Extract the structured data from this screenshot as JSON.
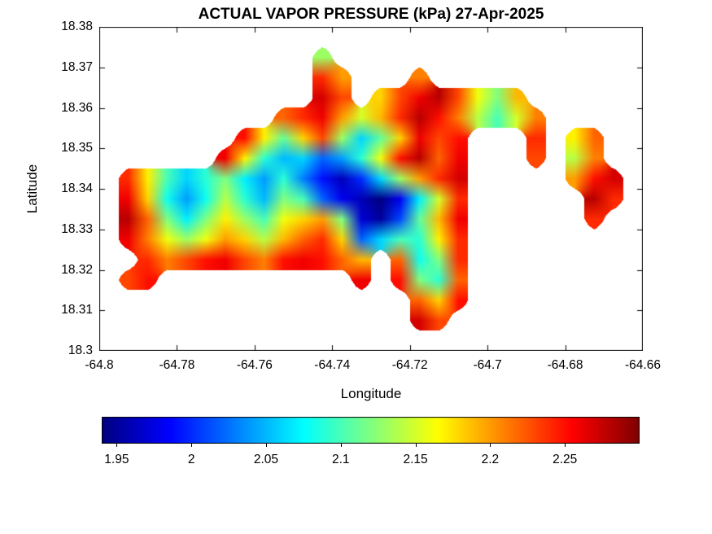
{
  "figure": {
    "background": "#ffffff",
    "axis_color": "#000000"
  },
  "chart_data": {
    "type": "heatmap",
    "title": "ACTUAL VAPOR PRESSURE (kPa) 27-Apr-2025",
    "xlabel": "Longitude",
    "ylabel": "Latitude",
    "units": "kPa",
    "xlim": [
      -64.8,
      -64.66
    ],
    "ylim": [
      18.3,
      18.38
    ],
    "xticks": [
      -64.8,
      -64.78,
      -64.76,
      -64.74,
      -64.72,
      -64.7,
      -64.68,
      -64.66
    ],
    "xtick_labels": [
      "-64.8",
      "-64.78",
      "-64.76",
      "-64.74",
      "-64.72",
      "-64.7",
      "-64.68",
      "-64.66"
    ],
    "yticks": [
      18.38,
      18.37,
      18.36,
      18.35,
      18.34,
      18.33,
      18.32,
      18.31,
      18.3
    ],
    "ytick_labels": [
      "18.38",
      "18.37",
      "18.36",
      "18.35",
      "18.34",
      "18.33",
      "18.32",
      "18.31",
      "18.3"
    ],
    "colormap": "jet",
    "grid_lines": false,
    "colorbar": {
      "orientation": "horizontal",
      "location": "south",
      "vmin": 1.94,
      "vmax": 2.3,
      "ticks": [
        1.95,
        2,
        2.05,
        2.1,
        2.15,
        2.2,
        2.25
      ],
      "tick_labels": [
        "1.95",
        "2",
        "2.05",
        "2.1",
        "2.15",
        "2.2",
        "2.25"
      ]
    },
    "grid": {
      "note": "estimated vapor-pressure field (kPa); null = sea / no data",
      "lon_start": -64.8,
      "lon_step": 0.005,
      "lat_start": 18.38,
      "lat_step": -0.005,
      "rows": 16,
      "cols": 28,
      "values": [
        [
          null,
          null,
          null,
          null,
          null,
          null,
          null,
          null,
          null,
          null,
          null,
          null,
          null,
          null,
          null,
          null,
          null,
          null,
          null,
          null,
          null,
          null,
          null,
          null,
          null,
          null,
          null,
          null
        ],
        [
          null,
          null,
          null,
          null,
          null,
          null,
          null,
          null,
          null,
          null,
          null,
          2.13,
          null,
          null,
          null,
          null,
          null,
          null,
          null,
          null,
          null,
          null,
          null,
          null,
          null,
          null,
          null,
          null
        ],
        [
          null,
          null,
          null,
          null,
          null,
          null,
          null,
          null,
          null,
          null,
          null,
          2.24,
          2.2,
          null,
          null,
          null,
          2.21,
          null,
          null,
          null,
          null,
          null,
          null,
          null,
          null,
          null,
          null,
          null
        ],
        [
          null,
          null,
          null,
          null,
          null,
          null,
          null,
          null,
          null,
          null,
          null,
          2.27,
          2.23,
          null,
          2.18,
          2.23,
          2.26,
          2.28,
          2.23,
          2.16,
          2.12,
          2.19,
          null,
          null,
          null,
          null,
          null,
          null
        ],
        [
          null,
          null,
          null,
          null,
          null,
          null,
          null,
          null,
          null,
          2.22,
          2.24,
          2.26,
          2.2,
          2.15,
          2.19,
          2.24,
          2.28,
          2.25,
          2.21,
          2.14,
          2.1,
          2.15,
          2.21,
          null,
          null,
          null,
          null,
          null
        ],
        [
          null,
          null,
          null,
          null,
          null,
          null,
          null,
          2.25,
          2.17,
          2.11,
          2.18,
          2.23,
          2.13,
          2.06,
          2.11,
          2.18,
          2.26,
          2.23,
          2.25,
          null,
          null,
          null,
          2.24,
          null,
          2.17,
          2.22,
          null,
          null
        ],
        [
          null,
          null,
          null,
          null,
          null,
          null,
          2.26,
          2.17,
          2.09,
          2.05,
          2.06,
          2.02,
          2.04,
          2.09,
          2.16,
          2.25,
          2.28,
          2.22,
          2.26,
          null,
          null,
          null,
          2.23,
          null,
          2.14,
          2.21,
          null,
          null
        ],
        [
          null,
          2.24,
          2.17,
          2.1,
          2.06,
          2.09,
          2.12,
          2.07,
          2.04,
          2.09,
          2.03,
          1.99,
          1.96,
          2.0,
          2.06,
          2.13,
          2.2,
          2.24,
          2.27,
          null,
          null,
          null,
          null,
          null,
          2.2,
          2.25,
          2.27,
          null
        ],
        [
          null,
          2.26,
          2.18,
          2.08,
          2.04,
          2.08,
          2.14,
          2.09,
          2.05,
          2.12,
          2.1,
          2.02,
          1.98,
          1.96,
          1.94,
          1.98,
          2.07,
          2.15,
          2.24,
          null,
          null,
          null,
          null,
          null,
          null,
          2.28,
          2.24,
          null
        ],
        [
          null,
          2.28,
          2.22,
          2.12,
          2.07,
          2.12,
          2.17,
          2.13,
          2.1,
          2.16,
          2.18,
          2.2,
          2.12,
          1.97,
          1.95,
          2.01,
          2.11,
          2.19,
          2.26,
          null,
          null,
          null,
          null,
          null,
          null,
          2.24,
          null,
          null
        ],
        [
          null,
          2.26,
          2.21,
          2.16,
          2.13,
          2.16,
          2.2,
          2.18,
          2.14,
          2.19,
          2.22,
          2.24,
          2.18,
          2.02,
          2.06,
          2.1,
          2.09,
          2.17,
          2.24,
          null,
          null,
          null,
          null,
          null,
          null,
          null,
          null,
          null
        ],
        [
          null,
          null,
          2.24,
          2.21,
          2.23,
          2.25,
          2.26,
          2.23,
          2.21,
          2.25,
          2.26,
          2.25,
          2.22,
          2.19,
          null,
          2.22,
          2.08,
          2.12,
          2.24,
          null,
          null,
          null,
          null,
          null,
          null,
          null,
          null,
          null
        ],
        [
          null,
          2.23,
          2.25,
          null,
          null,
          null,
          null,
          null,
          null,
          null,
          null,
          null,
          null,
          2.26,
          null,
          2.25,
          2.12,
          2.09,
          2.22,
          null,
          null,
          null,
          null,
          null,
          null,
          null,
          null,
          null
        ],
        [
          null,
          null,
          null,
          null,
          null,
          null,
          null,
          null,
          null,
          null,
          null,
          null,
          null,
          null,
          null,
          null,
          2.22,
          2.18,
          2.25,
          null,
          null,
          null,
          null,
          null,
          null,
          null,
          null,
          null
        ],
        [
          null,
          null,
          null,
          null,
          null,
          null,
          null,
          null,
          null,
          null,
          null,
          null,
          null,
          null,
          null,
          null,
          2.27,
          2.23,
          null,
          null,
          null,
          null,
          null,
          null,
          null,
          null,
          null,
          null
        ],
        [
          null,
          null,
          null,
          null,
          null,
          null,
          null,
          null,
          null,
          null,
          null,
          null,
          null,
          null,
          null,
          null,
          null,
          null,
          null,
          null,
          null,
          null,
          null,
          null,
          null,
          null,
          null,
          null
        ]
      ]
    }
  }
}
